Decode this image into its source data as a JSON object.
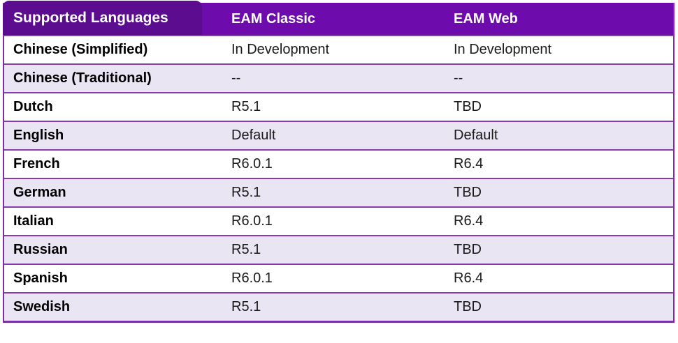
{
  "table": {
    "columns": [
      {
        "label": "Supported Languages"
      },
      {
        "label": "EAM Classic"
      },
      {
        "label": "EAM Web"
      }
    ],
    "rows": [
      {
        "language": "Chinese (Simplified)",
        "classic": "In Development",
        "web": "In Development"
      },
      {
        "language": "Chinese (Traditional)",
        "classic": "--",
        "web": "--"
      },
      {
        "language": "Dutch",
        "classic": "R5.1",
        "web": "TBD"
      },
      {
        "language": "English",
        "classic": "Default",
        "web": "Default"
      },
      {
        "language": "French",
        "classic": "R6.0.1",
        "web": "R6.4"
      },
      {
        "language": "German",
        "classic": "R5.1",
        "web": "TBD"
      },
      {
        "language": "Italian",
        "classic": "R6.0.1",
        "web": "R6.4"
      },
      {
        "language": "Russian",
        "classic": "R5.1",
        "web": "TBD"
      },
      {
        "language": "Spanish",
        "classic": "R6.0.1",
        "web": "R6.4"
      },
      {
        "language": "Swedish",
        "classic": "R5.1",
        "web": "TBD"
      }
    ],
    "colors": {
      "header_band": "#6e0bad",
      "header_tab": "#5c0c8e",
      "row_alt": "#e9e5f2",
      "row_white": "#ffffff",
      "grid_line": "#7b2fa6",
      "header_text": "#ffffff",
      "body_text": "#1a1a1a"
    }
  }
}
